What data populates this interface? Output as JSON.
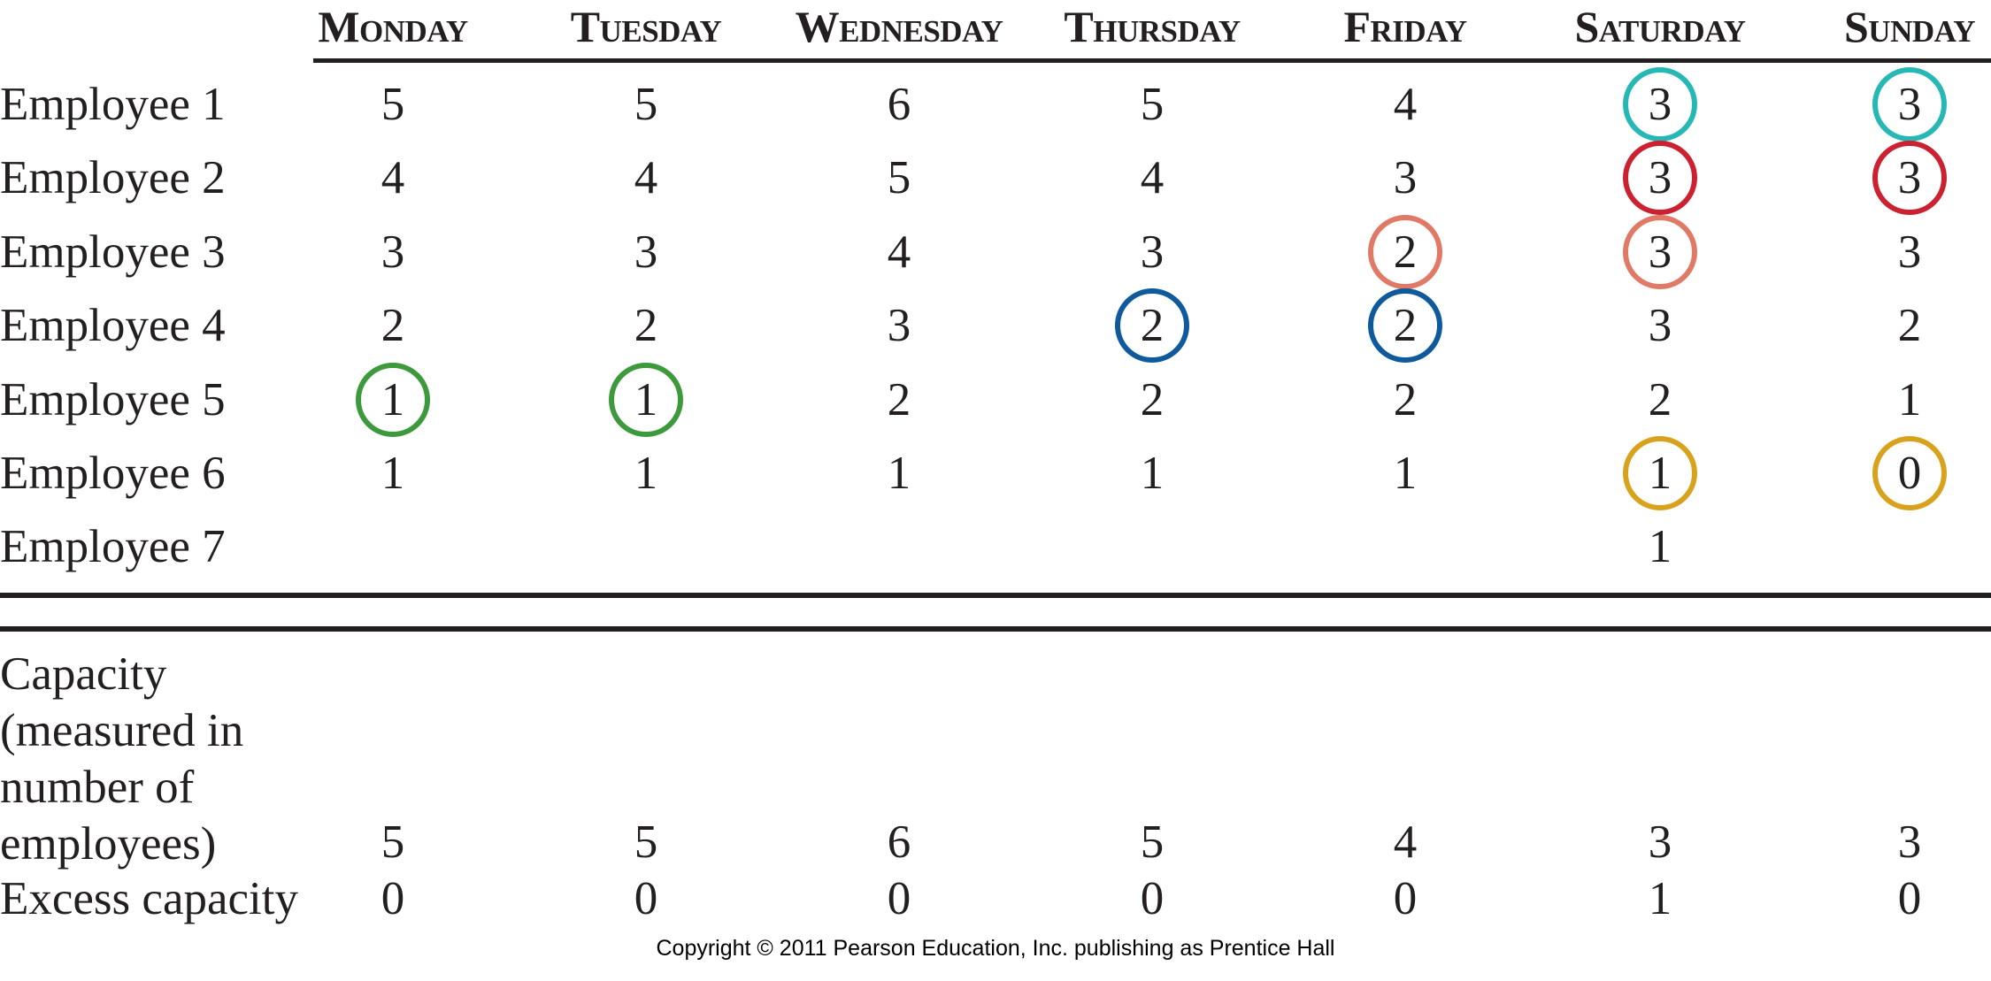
{
  "days": [
    "Monday",
    "Tuesday",
    "Wednesday",
    "Thursday",
    "Friday",
    "Saturday",
    "Sunday"
  ],
  "employees": [
    {
      "label": "Employee 1",
      "values": [
        "5",
        "5",
        "6",
        "5",
        "4",
        "3",
        "3"
      ],
      "circled": [
        null,
        null,
        null,
        null,
        null,
        "teal",
        "teal"
      ]
    },
    {
      "label": "Employee 2",
      "values": [
        "4",
        "4",
        "5",
        "4",
        "3",
        "3",
        "3"
      ],
      "circled": [
        null,
        null,
        null,
        null,
        null,
        "red",
        "red"
      ]
    },
    {
      "label": "Employee 3",
      "values": [
        "3",
        "3",
        "4",
        "3",
        "2",
        "3",
        "3"
      ],
      "circled": [
        null,
        null,
        null,
        null,
        "salmon",
        "salmon",
        null
      ]
    },
    {
      "label": "Employee 4",
      "values": [
        "2",
        "2",
        "3",
        "2",
        "2",
        "3",
        "2"
      ],
      "circled": [
        null,
        null,
        null,
        "blue",
        "blue",
        null,
        null
      ]
    },
    {
      "label": "Employee 5",
      "values": [
        "1",
        "1",
        "2",
        "2",
        "2",
        "2",
        "1"
      ],
      "circled": [
        "green",
        "green",
        null,
        null,
        null,
        null,
        null
      ]
    },
    {
      "label": "Employee 6",
      "values": [
        "1",
        "1",
        "1",
        "1",
        "1",
        "1",
        "0"
      ],
      "circled": [
        null,
        null,
        null,
        null,
        null,
        "gold",
        "gold"
      ]
    },
    {
      "label": "Employee 7",
      "values": [
        "",
        "",
        "",
        "",
        "",
        "1",
        ""
      ],
      "circled": [
        null,
        null,
        null,
        null,
        null,
        null,
        null
      ]
    }
  ],
  "capacity": {
    "label_lines": [
      "Capacity",
      "(measured in",
      "number of",
      "employees)"
    ],
    "values": [
      "5",
      "5",
      "6",
      "5",
      "4",
      "3",
      "3"
    ]
  },
  "excess": {
    "label": "Excess capacity",
    "values": [
      "0",
      "0",
      "0",
      "0",
      "0",
      "1",
      "0"
    ]
  },
  "ring_colors": {
    "teal": "#27b8b6",
    "red": "#cc2131",
    "salmon": "#e07a66",
    "blue": "#0e5a9c",
    "green": "#3c9a3c",
    "gold": "#d9a21c"
  },
  "copyright": "Copyright © 2011 Pearson Education, Inc. publishing as Prentice Hall"
}
